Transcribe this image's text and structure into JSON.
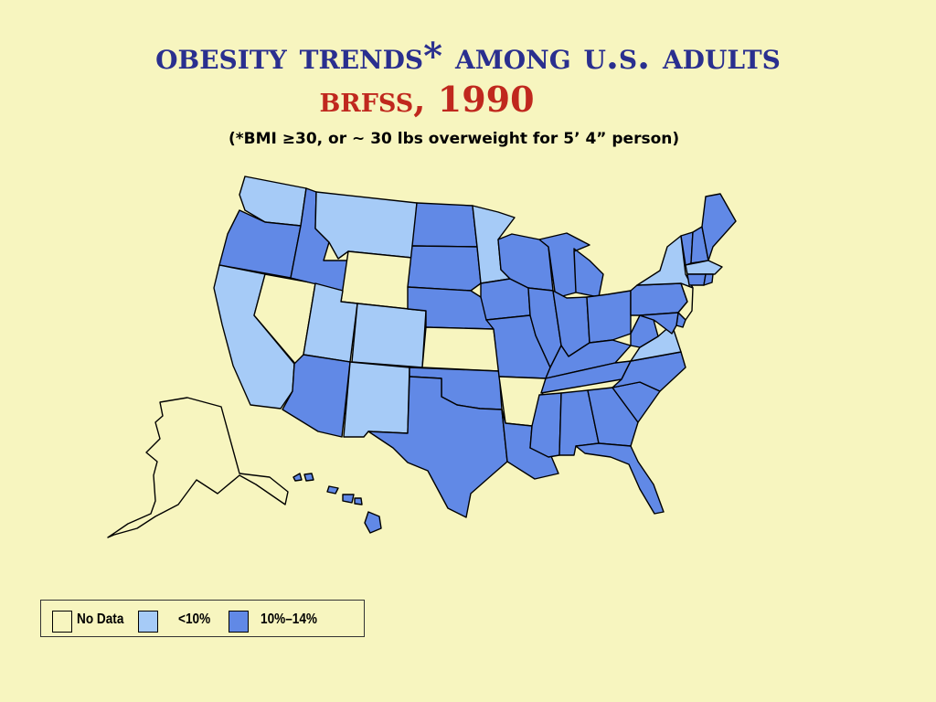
{
  "title": "Obesity Trends* Among U.S. Adults",
  "subtitle": "BRFSS, 1990",
  "note": "(*BMI ≥30, or ~ 30 lbs overweight for 5’ 4” person)",
  "colors": {
    "background": "#f7f5bf",
    "no_data": "#f7f5bf",
    "lt10": "#a6cbf7",
    "10to14": "#6189e6",
    "title": "#2a2f8f",
    "subtitle": "#c0281e"
  },
  "legend": [
    {
      "key": "no_data",
      "label": "No Data"
    },
    {
      "key": "lt10",
      "label": "<10%"
    },
    {
      "key": "10to14",
      "label": "10%–14%"
    }
  ],
  "states": {
    "WA": "lt10",
    "OR": "10to14",
    "CA": "lt10",
    "NV": "no_data",
    "ID": "10to14",
    "MT": "lt10",
    "WY": "no_data",
    "UT": "lt10",
    "CO": "lt10",
    "AZ": "10to14",
    "NM": "lt10",
    "ND": "10to14",
    "SD": "10to14",
    "NE": "10to14",
    "KS": "no_data",
    "OK": "10to14",
    "TX": "10to14",
    "MN": "lt10",
    "IA": "10to14",
    "MO": "10to14",
    "AR": "no_data",
    "LA": "10to14",
    "WI": "10to14",
    "IL": "10to14",
    "MI": "10to14",
    "IN": "10to14",
    "OH": "10to14",
    "KY": "10to14",
    "TN": "10to14",
    "MS": "10to14",
    "AL": "10to14",
    "GA": "10to14",
    "FL": "10to14",
    "SC": "10to14",
    "NC": "10to14",
    "VA": "lt10",
    "WV": "10to14",
    "PA": "10to14",
    "NY": "lt10",
    "VT": "10to14",
    "NH": "10to14",
    "ME": "10to14",
    "MA": "lt10",
    "CT": "10to14",
    "RI": "10to14",
    "NJ": "no_data",
    "DE": "10to14",
    "MD": "10to14",
    "AK": "no_data",
    "HI": "10to14"
  }
}
